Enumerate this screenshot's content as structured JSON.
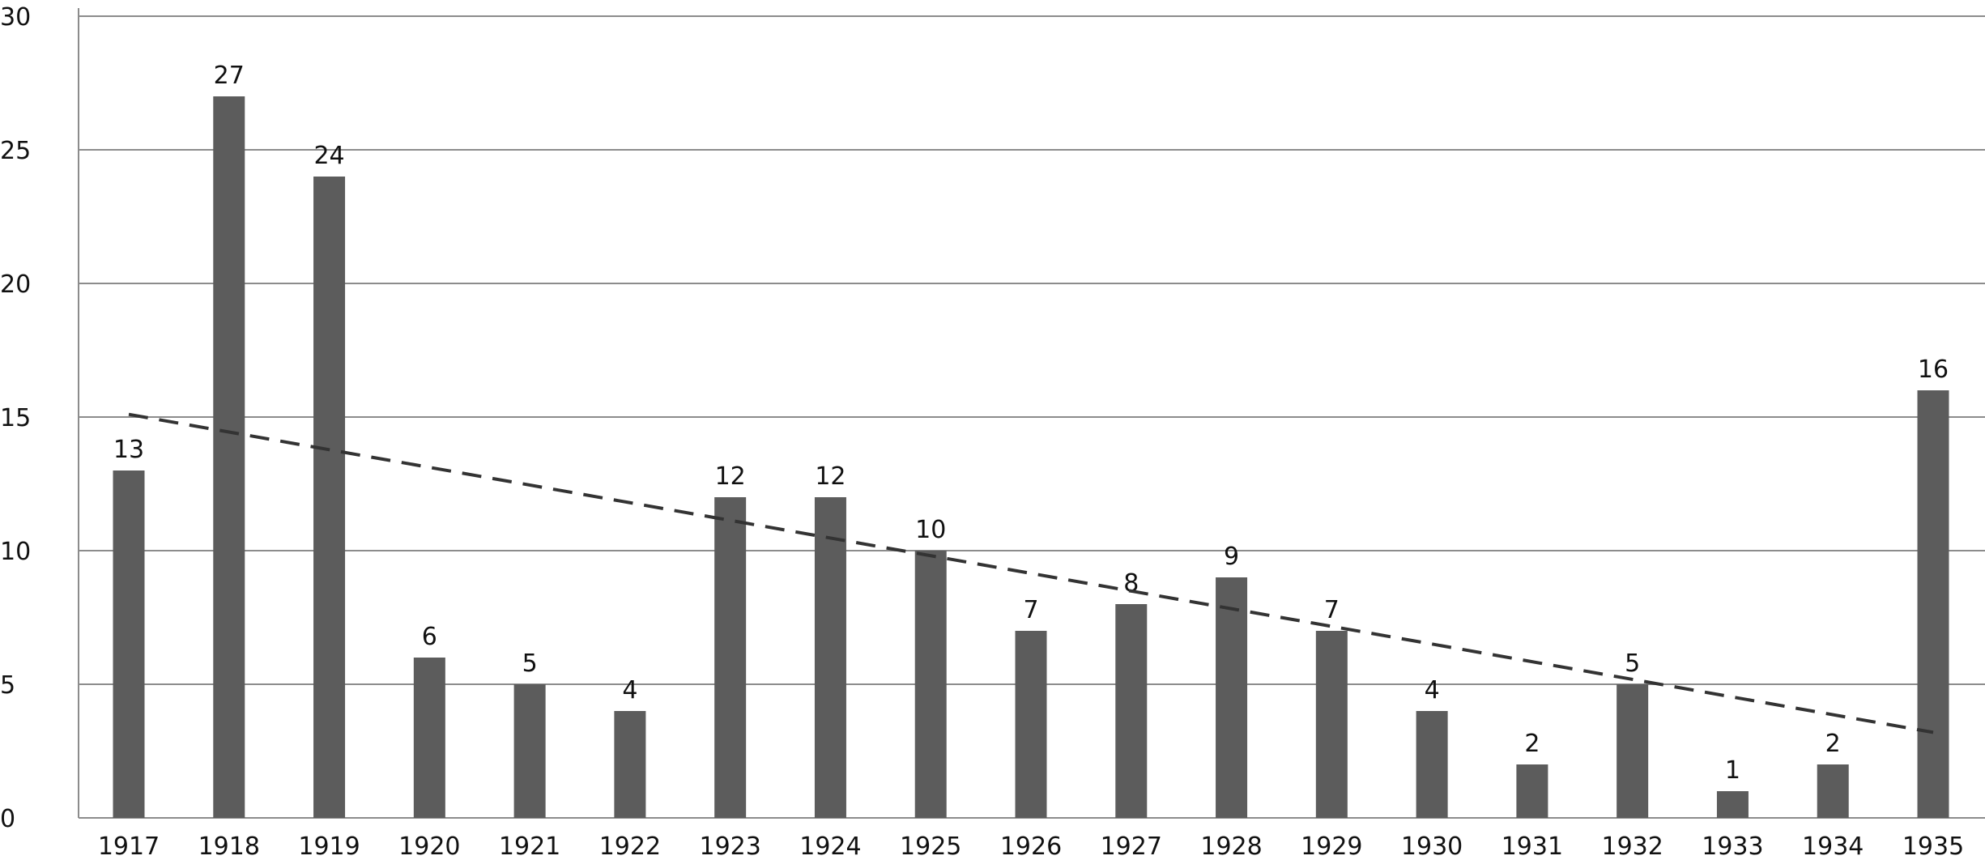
{
  "chart_data": {
    "type": "bar",
    "title": "",
    "xlabel": "",
    "ylabel": "",
    "categories": [
      "1917",
      "1918",
      "1919",
      "1920",
      "1921",
      "1922",
      "1923",
      "1924",
      "1925",
      "1926",
      "1927",
      "1928",
      "1929",
      "1930",
      "1931",
      "1932",
      "1933",
      "1934",
      "1935"
    ],
    "values": [
      13,
      27,
      24,
      6,
      5,
      4,
      12,
      12,
      10,
      7,
      8,
      9,
      7,
      4,
      2,
      5,
      1,
      2,
      16
    ],
    "ylim": [
      0,
      30
    ],
    "yticks": [
      0,
      5,
      10,
      15,
      20,
      25,
      30
    ],
    "grid": true,
    "data_labels": true,
    "trendline": {
      "type": "linear",
      "style": "dashed",
      "start": 15.1,
      "end": 3.2
    },
    "colors": {
      "bar": "#5c5c5c",
      "grid": "#8c8c8c",
      "trendline": "#333333"
    }
  }
}
